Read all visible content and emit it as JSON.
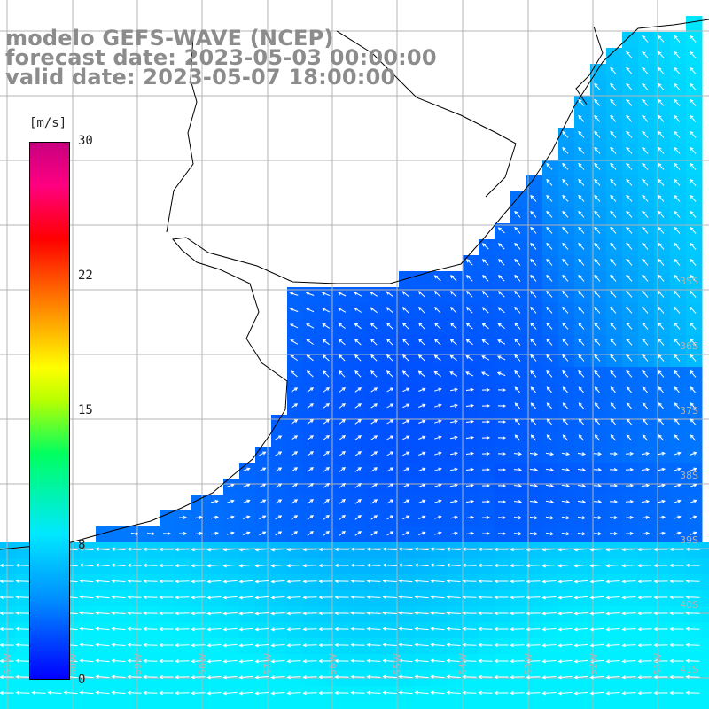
{
  "header": {
    "line1": "modelo GEFS-WAVE (NCEP)",
    "line2": "forecast date: 2023-05-03 00:00:00",
    "line3": "valid date: 2023-05-07 18:00:00"
  },
  "colorbar": {
    "unit": "[m/s]",
    "ticks": [
      "30",
      "22",
      "15",
      "8",
      "0"
    ],
    "tick_values": [
      30,
      22,
      15,
      8,
      0
    ],
    "range": [
      0,
      30
    ],
    "colors": [
      "#0000ff",
      "#0090ff",
      "#00e8ff",
      "#00ff60",
      "#b8ff00",
      "#ffff00",
      "#ff8000",
      "#ff0000",
      "#ff0080",
      "#c80080"
    ]
  },
  "map": {
    "field": "wind speed with direction arrows",
    "land_color": "#ffffff",
    "gridline_color": "#b4b4b4",
    "arrow_color": "#ffffff",
    "lat_labels": [
      "35S",
      "36S",
      "37S",
      "38S",
      "39S",
      "40S",
      "41S"
    ],
    "lon_labels": [
      "61W",
      "60W",
      "59W",
      "58W",
      "57W",
      "56W",
      "55W",
      "54W",
      "53W",
      "52W",
      "51W"
    ]
  }
}
